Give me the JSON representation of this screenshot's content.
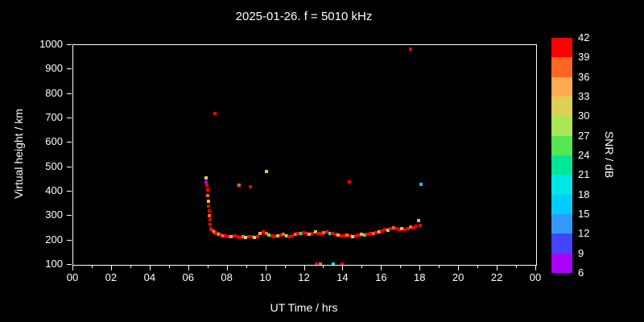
{
  "chart_data": {
    "type": "scatter",
    "title": "2025-01-26. f = 5010 kHz",
    "xlabel": "UT Time / hrs",
    "ylabel": "Virtual height / km",
    "xlim": [
      0,
      24
    ],
    "ylim": [
      100,
      1000
    ],
    "grid": false,
    "background": "#000000",
    "x_ticks": {
      "values": [
        0,
        2,
        4,
        6,
        8,
        10,
        12,
        14,
        16,
        18,
        20,
        22,
        24
      ],
      "labels": [
        "00",
        "02",
        "04",
        "06",
        "08",
        "10",
        "12",
        "14",
        "16",
        "18",
        "20",
        "22",
        "00"
      ]
    },
    "y_ticks": [
      100,
      200,
      300,
      400,
      500,
      600,
      700,
      800,
      900,
      1000
    ],
    "colorbar": {
      "label": "SNR / dB",
      "ticks": [
        6,
        9,
        12,
        15,
        18,
        21,
        24,
        27,
        30,
        33,
        36,
        39,
        42
      ],
      "colors_low_to_high": [
        "#aa00ff",
        "#4444ff",
        "#3399ff",
        "#00ccff",
        "#00e6e6",
        "#00e699",
        "#55e655",
        "#aae655",
        "#ddd055",
        "#ffaa55",
        "#ff6622",
        "#ff0000"
      ]
    },
    "points_format": [
      "ut_hours",
      "virtual_height_km",
      "snr_db"
    ],
    "points": [
      [
        6.88,
        455,
        30
      ],
      [
        6.9,
        440,
        7
      ],
      [
        6.92,
        425,
        41
      ],
      [
        6.96,
        405,
        40
      ],
      [
        6.96,
        385,
        36
      ],
      [
        7.0,
        360,
        34
      ],
      [
        7.0,
        340,
        41
      ],
      [
        7.04,
        320,
        40
      ],
      [
        7.04,
        300,
        38
      ],
      [
        7.08,
        285,
        41
      ],
      [
        7.08,
        265,
        40
      ],
      [
        7.12,
        250,
        41
      ],
      [
        7.35,
        720,
        41
      ],
      [
        8.6,
        425,
        36
      ],
      [
        9.2,
        420,
        40
      ],
      [
        10.0,
        483,
        28
      ],
      [
        14.3,
        440,
        41
      ],
      [
        17.5,
        985,
        41
      ],
      [
        18.05,
        430,
        17
      ],
      [
        12.6,
        103,
        41
      ],
      [
        12.8,
        103,
        38
      ],
      [
        13.5,
        103,
        22
      ],
      [
        13.95,
        103,
        41
      ],
      [
        7.15,
        245,
        41
      ],
      [
        7.25,
        238,
        38
      ],
      [
        7.35,
        232,
        36
      ],
      [
        7.45,
        228,
        41
      ],
      [
        7.55,
        225,
        34
      ],
      [
        7.65,
        222,
        41
      ],
      [
        7.75,
        220,
        37
      ],
      [
        7.9,
        218,
        41
      ],
      [
        8.05,
        216,
        40
      ],
      [
        8.2,
        215,
        33
      ],
      [
        8.35,
        218,
        41
      ],
      [
        8.5,
        214,
        39
      ],
      [
        8.65,
        212,
        41
      ],
      [
        8.8,
        215,
        36
      ],
      [
        8.95,
        213,
        30
      ],
      [
        9.1,
        216,
        41
      ],
      [
        9.25,
        214,
        40
      ],
      [
        9.4,
        212,
        27
      ],
      [
        9.55,
        215,
        41
      ],
      [
        9.7,
        230,
        33
      ],
      [
        9.85,
        235,
        41
      ],
      [
        10.0,
        228,
        36
      ],
      [
        10.15,
        222,
        24
      ],
      [
        10.3,
        218,
        41
      ],
      [
        10.45,
        215,
        40
      ],
      [
        10.6,
        218,
        34
      ],
      [
        10.75,
        222,
        41
      ],
      [
        10.9,
        225,
        38
      ],
      [
        11.05,
        220,
        29
      ],
      [
        11.2,
        216,
        41
      ],
      [
        11.35,
        220,
        40
      ],
      [
        11.5,
        225,
        36
      ],
      [
        11.65,
        230,
        41
      ],
      [
        11.8,
        228,
        22
      ],
      [
        11.95,
        232,
        41
      ],
      [
        12.1,
        228,
        40
      ],
      [
        12.25,
        225,
        34
      ],
      [
        12.4,
        230,
        41
      ],
      [
        12.55,
        235,
        28
      ],
      [
        12.7,
        230,
        41
      ],
      [
        12.85,
        228,
        39
      ],
      [
        13.0,
        232,
        36
      ],
      [
        13.15,
        235,
        41
      ],
      [
        13.3,
        230,
        18
      ],
      [
        13.45,
        228,
        41
      ],
      [
        13.6,
        225,
        40
      ],
      [
        13.75,
        222,
        33
      ],
      [
        13.9,
        220,
        41
      ],
      [
        14.05,
        218,
        40
      ],
      [
        14.2,
        222,
        37
      ],
      [
        14.35,
        218,
        41
      ],
      [
        14.5,
        215,
        30
      ],
      [
        14.65,
        218,
        41
      ],
      [
        14.8,
        222,
        40
      ],
      [
        14.95,
        225,
        35
      ],
      [
        15.1,
        222,
        24
      ],
      [
        15.25,
        226,
        41
      ],
      [
        15.4,
        230,
        40
      ],
      [
        15.55,
        228,
        38
      ],
      [
        15.7,
        232,
        41
      ],
      [
        15.85,
        236,
        33
      ],
      [
        16.0,
        240,
        41
      ],
      [
        16.15,
        245,
        40
      ],
      [
        16.3,
        242,
        28
      ],
      [
        16.45,
        248,
        41
      ],
      [
        16.6,
        252,
        36
      ],
      [
        16.75,
        248,
        41
      ],
      [
        16.9,
        245,
        40
      ],
      [
        17.05,
        250,
        34
      ],
      [
        17.2,
        246,
        41
      ],
      [
        17.35,
        250,
        40
      ],
      [
        17.5,
        255,
        37
      ],
      [
        17.65,
        252,
        41
      ],
      [
        17.8,
        258,
        40
      ],
      [
        17.9,
        280,
        33
      ],
      [
        18.0,
        262,
        41
      ]
    ]
  }
}
